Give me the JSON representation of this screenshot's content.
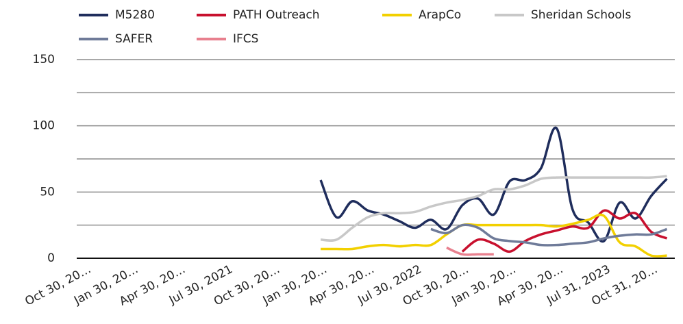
{
  "chart_data": {
    "type": "line",
    "smooth": true,
    "categories": [
      "Oct 30, 20…",
      null,
      null,
      "Jan 30, 20…",
      null,
      null,
      "Apr 30, 20…",
      null,
      null,
      "Jul 30, 2021",
      null,
      null,
      "Oct 30, 20…",
      null,
      null,
      "Jan 30, 20…",
      null,
      null,
      "Apr 30, 20…",
      null,
      null,
      "Jul 30, 2022",
      null,
      null,
      "Oct 30, 20…",
      null,
      null,
      "Jan 30, 20…",
      null,
      null,
      "Apr 30, 20…",
      null,
      null,
      "Jul 31, 2023",
      null,
      null,
      "Oct 31, 20…",
      null
    ],
    "series": [
      {
        "name": "M5280",
        "color": "#1f2d5c",
        "values": [
          null,
          null,
          null,
          null,
          null,
          null,
          null,
          null,
          null,
          null,
          null,
          null,
          null,
          null,
          null,
          59,
          31,
          43,
          36,
          33,
          28,
          23,
          29,
          22,
          40,
          45,
          33,
          58,
          59,
          68,
          98,
          37,
          27,
          13,
          42,
          30,
          47,
          60
        ]
      },
      {
        "name": "PATH Outreach",
        "color": "#c8102e",
        "values": [
          null,
          null,
          null,
          null,
          null,
          null,
          null,
          null,
          null,
          null,
          null,
          null,
          null,
          null,
          null,
          null,
          null,
          null,
          null,
          null,
          null,
          null,
          null,
          null,
          5,
          14,
          11,
          5,
          13,
          18,
          21,
          24,
          23,
          36,
          30,
          34,
          20,
          15
        ]
      },
      {
        "name": "ArapCo",
        "color": "#f2d000",
        "values": [
          null,
          null,
          null,
          null,
          null,
          null,
          null,
          null,
          null,
          null,
          null,
          null,
          null,
          null,
          null,
          7,
          7,
          7,
          9,
          10,
          9,
          10,
          10,
          18,
          25,
          25,
          25,
          25,
          25,
          25,
          24,
          26,
          29,
          32,
          12,
          9,
          2,
          2
        ]
      },
      {
        "name": "Sheridan Schools",
        "color": "#c8c8c8",
        "values": [
          null,
          null,
          null,
          null,
          null,
          null,
          null,
          null,
          null,
          null,
          null,
          null,
          null,
          null,
          null,
          14,
          14,
          23,
          31,
          34,
          34,
          35,
          39,
          42,
          44,
          47,
          52,
          52,
          55,
          60,
          61,
          61,
          61,
          61,
          61,
          61,
          61,
          62
        ]
      },
      {
        "name": "SAFER",
        "color": "#6f7b99",
        "values": [
          null,
          null,
          null,
          null,
          null,
          null,
          null,
          null,
          null,
          null,
          null,
          null,
          null,
          null,
          null,
          null,
          null,
          null,
          null,
          null,
          null,
          null,
          22,
          19,
          25,
          23,
          15,
          13,
          12,
          10,
          10,
          11,
          12,
          15,
          17,
          18,
          18,
          22
        ]
      },
      {
        "name": "IFCS",
        "color": "#e8808e",
        "values": [
          null,
          null,
          null,
          null,
          null,
          null,
          null,
          null,
          null,
          null,
          null,
          null,
          null,
          null,
          null,
          null,
          null,
          null,
          null,
          null,
          null,
          null,
          null,
          8,
          3,
          3,
          3,
          null,
          null,
          null,
          null,
          null,
          null,
          null,
          null,
          null,
          null,
          null
        ]
      }
    ],
    "ylim": [
      0,
      150
    ],
    "yticks": [
      0,
      50,
      100,
      150
    ],
    "minor_yticks": [
      25,
      75,
      125
    ],
    "grid": true
  }
}
